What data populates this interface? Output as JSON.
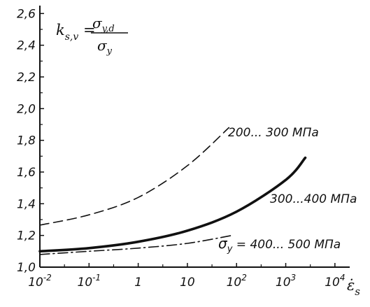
{
  "chart_data": {
    "type": "line",
    "x_scale": "log",
    "xlim": [
      0.01,
      20000
    ],
    "ylim": [
      1.0,
      2.65
    ],
    "x_ticks": [
      {
        "value": 0.01,
        "base": "10",
        "exp": "-2"
      },
      {
        "value": 0.1,
        "base": "10",
        "exp": "-1"
      },
      {
        "value": 1,
        "base": "1",
        "exp": ""
      },
      {
        "value": 10,
        "base": "10",
        "exp": ""
      },
      {
        "value": 100,
        "base": "10",
        "exp": "2"
      },
      {
        "value": 1000,
        "base": "10",
        "exp": "3"
      },
      {
        "value": 10000,
        "base": "10",
        "exp": "4"
      }
    ],
    "y_ticks": [
      {
        "value": 1.0,
        "label": "1,0"
      },
      {
        "value": 1.2,
        "label": "1,2"
      },
      {
        "value": 1.4,
        "label": "1,4"
      },
      {
        "value": 1.6,
        "label": "1,6"
      },
      {
        "value": 1.8,
        "label": "1,8"
      },
      {
        "value": 2.0,
        "label": "2,0"
      },
      {
        "value": 2.2,
        "label": "2,2"
      },
      {
        "value": 2.4,
        "label": "2,4"
      },
      {
        "value": 2.6,
        "label": "2,6"
      }
    ],
    "xlabel": "ε̇",
    "xlabel_sub": "s",
    "ylabel": {
      "lhs": "k",
      "lhs_sub": "s,v",
      "numerator": "σ",
      "numerator_sub": "y,d",
      "denominator": "σ",
      "denominator_sub": "y"
    },
    "series": [
      {
        "name": "200... 300 МПа",
        "style": "dashed",
        "x": [
          0.01,
          0.1,
          1,
          10,
          70
        ],
        "y": [
          1.265,
          1.33,
          1.44,
          1.64,
          1.88
        ]
      },
      {
        "name": "300...400 МПа",
        "style": "solid-bold",
        "x": [
          0.01,
          0.1,
          1,
          10,
          100,
          1000,
          2500
        ],
        "y": [
          1.1,
          1.12,
          1.16,
          1.23,
          1.35,
          1.55,
          1.69
        ]
      },
      {
        "name_prefix": "σ",
        "name_prefix_sub": "y",
        "name": " = 400... 500 МПа",
        "style": "dashdot",
        "x": [
          0.01,
          0.1,
          1,
          10,
          80
        ],
        "y": [
          1.08,
          1.1,
          1.12,
          1.15,
          1.2
        ]
      }
    ]
  }
}
